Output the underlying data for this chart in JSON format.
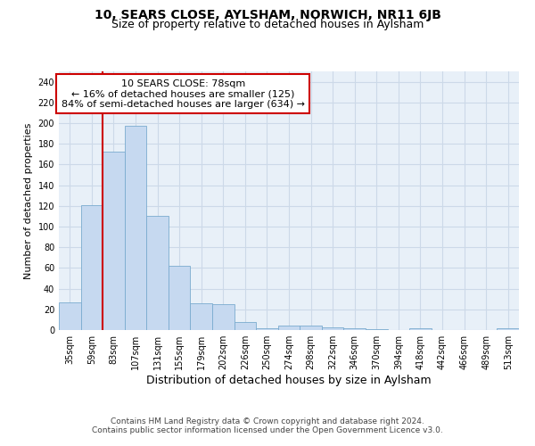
{
  "title_line1": "10, SEARS CLOSE, AYLSHAM, NORWICH, NR11 6JB",
  "title_line2": "Size of property relative to detached houses in Aylsham",
  "xlabel": "Distribution of detached houses by size in Aylsham",
  "ylabel": "Number of detached properties",
  "categories": [
    "35sqm",
    "59sqm",
    "83sqm",
    "107sqm",
    "131sqm",
    "155sqm",
    "179sqm",
    "202sqm",
    "226sqm",
    "250sqm",
    "274sqm",
    "298sqm",
    "322sqm",
    "346sqm",
    "370sqm",
    "394sqm",
    "418sqm",
    "442sqm",
    "466sqm",
    "489sqm",
    "513sqm"
  ],
  "values": [
    27,
    121,
    172,
    197,
    110,
    62,
    26,
    25,
    8,
    2,
    4,
    4,
    3,
    2,
    1,
    0,
    2,
    0,
    0,
    0,
    2
  ],
  "bar_color": "#c6d9f0",
  "bar_edge_color": "#7aabcf",
  "property_line_x": 2.0,
  "annotation_text_line1": "10 SEARS CLOSE: 78sqm",
  "annotation_text_line2": "← 16% of detached houses are smaller (125)",
  "annotation_text_line3": "84% of semi-detached houses are larger (634) →",
  "annotation_box_color": "#ffffff",
  "annotation_box_edge_color": "#cc0000",
  "vline_color": "#cc0000",
  "grid_color": "#ccd9e8",
  "background_color": "#e8f0f8",
  "ylim": [
    0,
    250
  ],
  "yticks": [
    0,
    20,
    40,
    60,
    80,
    100,
    120,
    140,
    160,
    180,
    200,
    220,
    240
  ],
  "footer_line1": "Contains HM Land Registry data © Crown copyright and database right 2024.",
  "footer_line2": "Contains public sector information licensed under the Open Government Licence v3.0.",
  "title1_fontsize": 10,
  "title2_fontsize": 9,
  "xlabel_fontsize": 9,
  "ylabel_fontsize": 8,
  "tick_fontsize": 7,
  "annotation_fontsize": 8,
  "footer_fontsize": 6.5
}
